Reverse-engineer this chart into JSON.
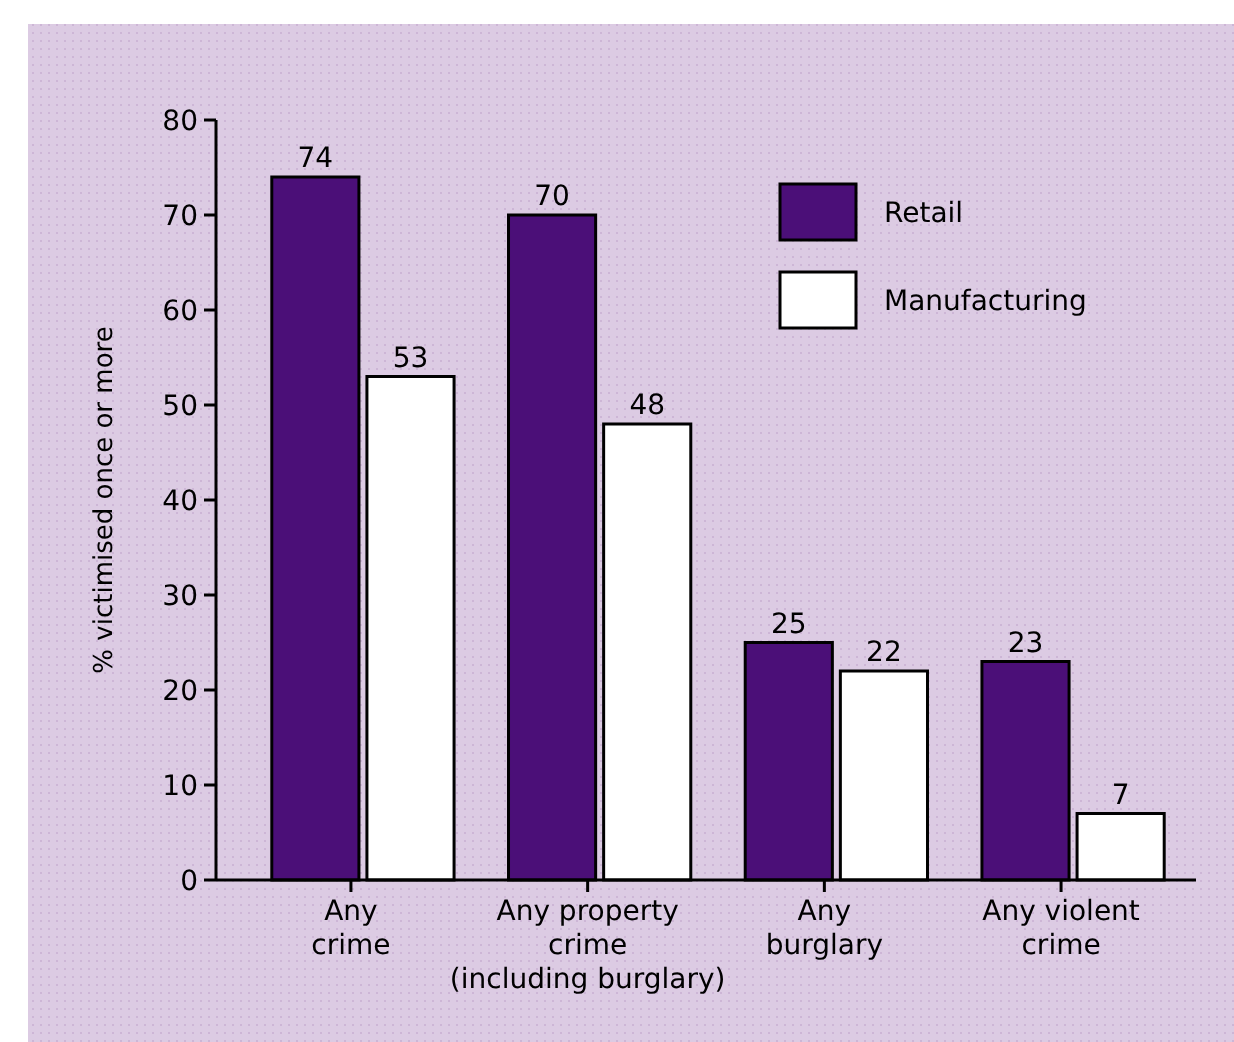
{
  "chart_data": {
    "type": "bar",
    "ylabel": "% victimised once or more",
    "categories": [
      "Any\ncrime",
      "Any property\ncrime\n(including burglary)",
      "Any\nburglary",
      "Any violent\ncrime"
    ],
    "series": [
      {
        "name": "Retail",
        "color": "#4b0f78",
        "values": [
          74,
          70,
          25,
          23
        ]
      },
      {
        "name": "Manufacturing",
        "color": "#ffffff",
        "values": [
          53,
          48,
          22,
          7
        ]
      }
    ],
    "ylim": [
      0,
      80
    ],
    "yticks": [
      0,
      10,
      20,
      30,
      40,
      50,
      60,
      70,
      80
    ],
    "data_labels": true,
    "legend": "top right",
    "grid": false
  }
}
